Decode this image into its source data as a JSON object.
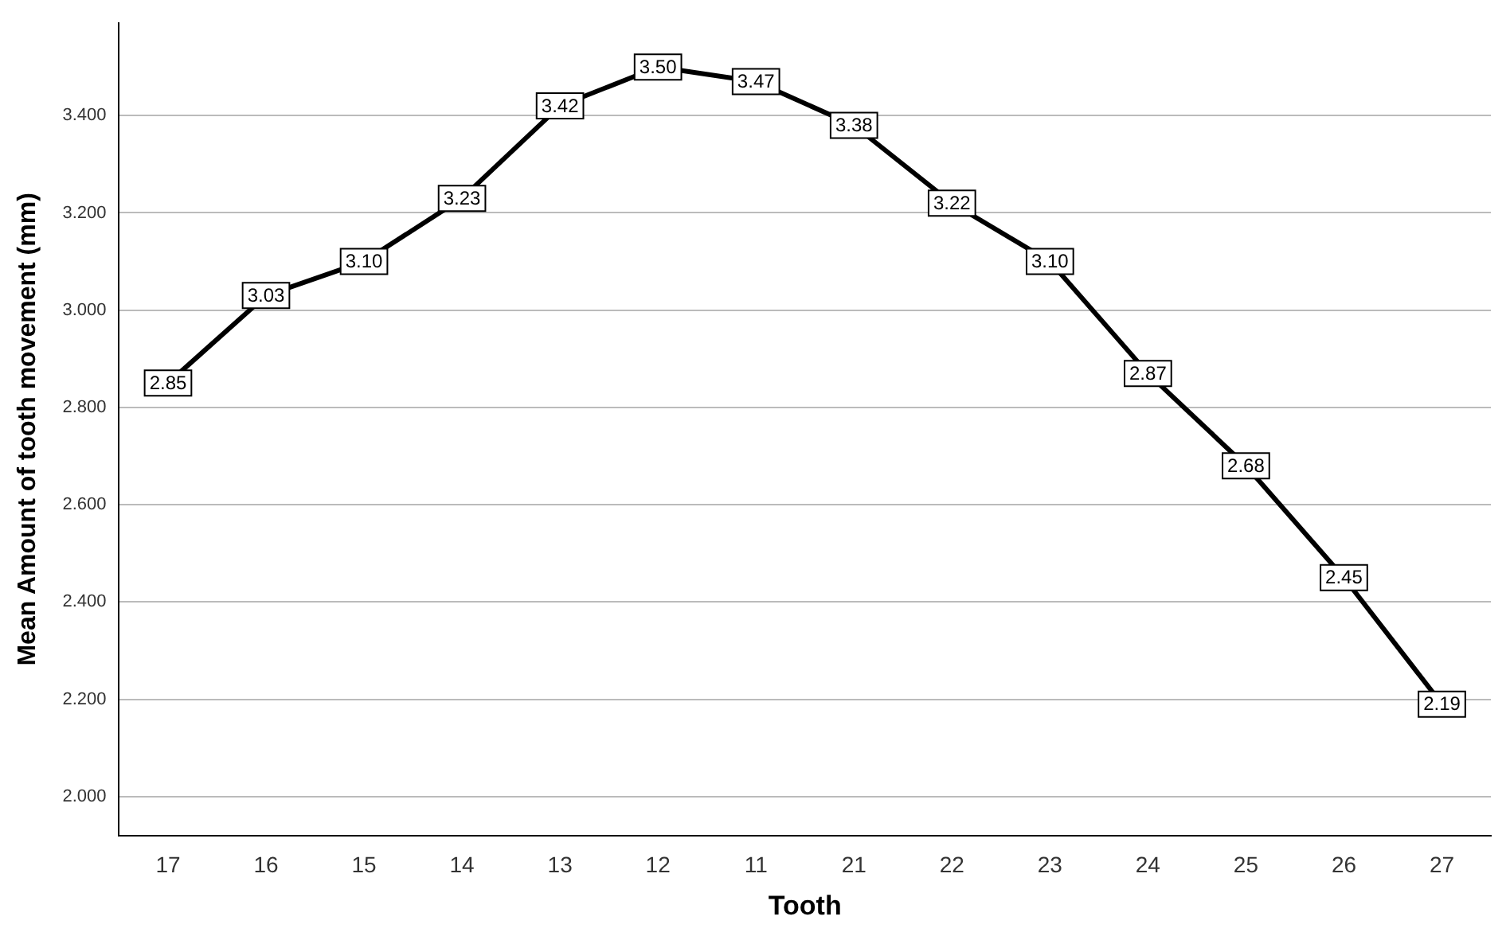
{
  "chart_data": {
    "type": "line",
    "xlabel": "Tooth",
    "ylabel": "Mean Amount of tooth movement (mm)",
    "categories": [
      "17",
      "16",
      "15",
      "14",
      "13",
      "12",
      "11",
      "21",
      "22",
      "23",
      "24",
      "25",
      "26",
      "27"
    ],
    "values": [
      2.85,
      3.03,
      3.1,
      3.23,
      3.42,
      3.5,
      3.47,
      3.38,
      3.22,
      3.1,
      2.87,
      2.68,
      2.45,
      2.19
    ],
    "value_labels": [
      "2.85",
      "3.03",
      "3.10",
      "3.23",
      "3.42",
      "3.50",
      "3.47",
      "3.38",
      "3.22",
      "3.10",
      "2.87",
      "2.68",
      "2.45",
      "2.19"
    ],
    "color": "#000000",
    "ylim": [
      1.92,
      3.59
    ],
    "yticks": [
      {
        "value": 2,
        "label": "2.000"
      },
      {
        "value": 2.2,
        "label": "2.200"
      },
      {
        "value": 2.4,
        "label": "2.400"
      },
      {
        "value": 2.6,
        "label": "2.600"
      },
      {
        "value": 2.8,
        "label": "2.800"
      },
      {
        "value": 3,
        "label": "3.000"
      },
      {
        "value": 3.2,
        "label": "3.200"
      },
      {
        "value": 3.4,
        "label": "3.400"
      }
    ],
    "grid": "y",
    "legend": false,
    "marker": "square"
  }
}
